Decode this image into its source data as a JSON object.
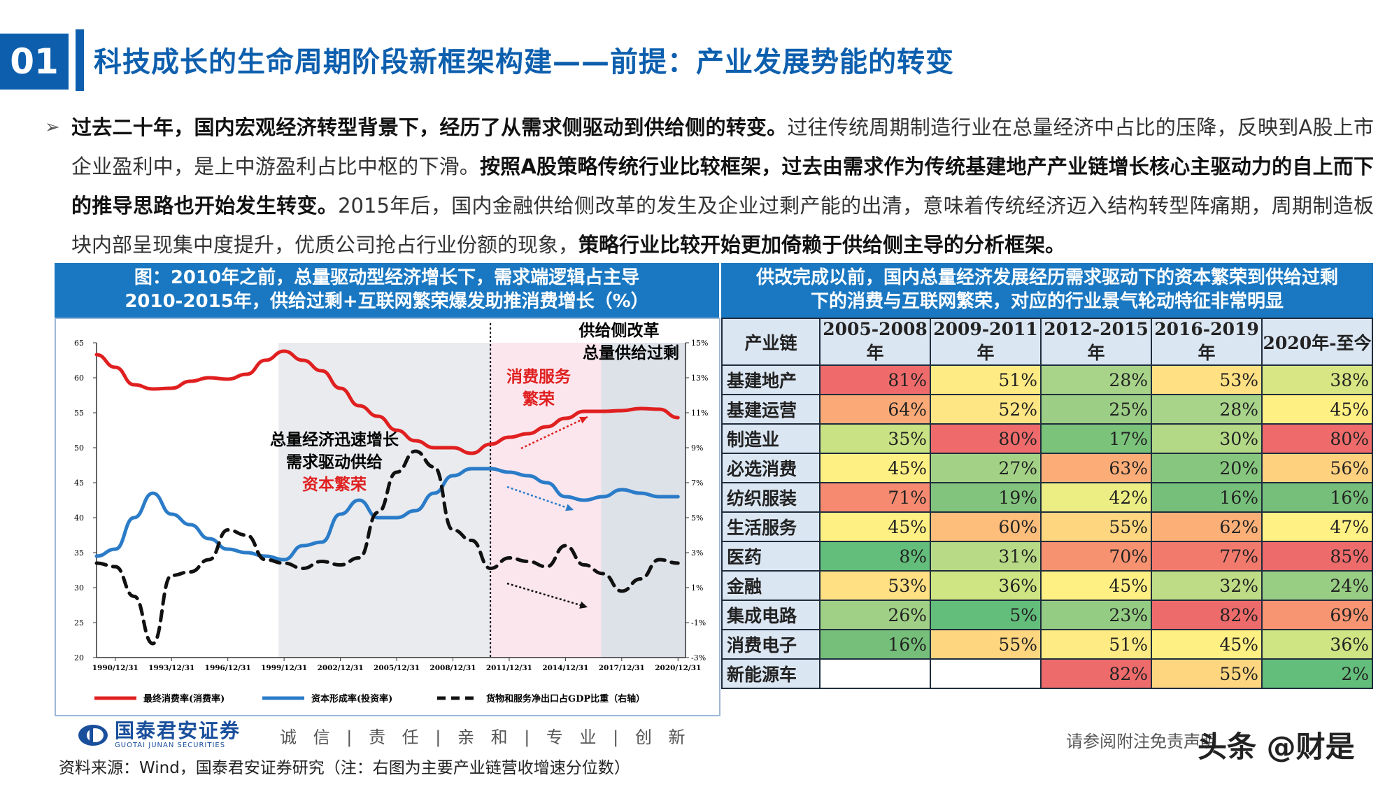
{
  "header": {
    "number": "01",
    "title": "科技成长的生命周期阶段新框架构建——前提：产业发展势能的转变"
  },
  "body": {
    "bullet": "➢",
    "b1": "过去二十年，国内宏观经济转型背景下，经历了从需求侧驱动到供给侧的转变。",
    "t1": "过往传统周期制造行业在总量经济中占比的压降，反映到A股上市企业盈利中，是上中游盈利占比中枢的下滑。",
    "b2": "按照A股策略传统行业比较框架，过去由需求作为传统基建地产产业链增长核心主驱动力的自上而下的推导思路也开始发生转变。",
    "t2": "2015年后，国内金融供给侧改革的发生及企业过剩产能的出清，意味着传统经济迈入结构转型阵痛期，周期制造板块内部呈现集中度提升，优质公司抢占行业份额的现象，",
    "b3": "策略行业比较开始更加倚赖于供给侧主导的分析框架。"
  },
  "left_panel": {
    "title_line1": "图：2010年之前，总量驱动型经济增长下，需求端逻辑占主导",
    "title_line2": "2010-2015年，供给过剩+互联网繁荣爆发助推消费增长（%）"
  },
  "right_panel": {
    "title_line1": "供改完成以前，国内总量经济发展经历需求驱动下的资本繁荣到供给过剩",
    "title_line2": "下的消费与互联网繁荣，对应的行业景气轮动特征非常明显"
  },
  "chart_data": {
    "type": "line",
    "x_ticks": [
      "1990/12/31",
      "1993/12/31",
      "1996/12/31",
      "1999/12/31",
      "2002/12/31",
      "2005/12/31",
      "2008/12/31",
      "2011/12/31",
      "2014/12/31",
      "2017/12/31",
      "2020/12/31"
    ],
    "x": [
      1990,
      1991,
      1992,
      1993,
      1994,
      1995,
      1996,
      1997,
      1998,
      1999,
      2000,
      2001,
      2002,
      2003,
      2004,
      2005,
      2006,
      2007,
      2008,
      2009,
      2010,
      2011,
      2012,
      2013,
      2014,
      2015,
      2016,
      2017,
      2018,
      2019,
      2020,
      2021
    ],
    "y_left_ticks": [
      "65",
      "60",
      "55",
      "50",
      "45",
      "40",
      "35",
      "30",
      "25",
      "20"
    ],
    "y_left_range": [
      20,
      65
    ],
    "y_right_ticks": [
      "15%",
      "13%",
      "11%",
      "9%",
      "7%",
      "5%",
      "3%",
      "1%",
      "-1%",
      "-3%"
    ],
    "y_right_range": [
      -3,
      15
    ],
    "series": [
      {
        "name": "最终消费率(消费率)",
        "axis": "left",
        "color": "#e02020",
        "dash": "solid",
        "values": [
          63.3,
          61.5,
          59.0,
          58.4,
          58.5,
          59.5,
          60.0,
          59.8,
          60.5,
          62.5,
          63.8,
          62.5,
          61.0,
          58.5,
          56.0,
          54.5,
          52.5,
          51.0,
          50.0,
          50.0,
          49.2,
          50.5,
          51.5,
          52.0,
          53.0,
          54.2,
          55.2,
          55.2,
          55.3,
          55.6,
          55.5,
          54.3
        ]
      },
      {
        "name": "资本形成率(投资率)",
        "axis": "left",
        "color": "#2b7cc8",
        "dash": "solid",
        "values": [
          34.5,
          35.5,
          40.0,
          43.5,
          40.5,
          39.0,
          37.0,
          35.5,
          35.0,
          34.5,
          34.0,
          36.0,
          36.5,
          40.5,
          42.5,
          40.0,
          40.0,
          41.0,
          43.5,
          46.0,
          47.0,
          47.0,
          46.5,
          46.0,
          45.0,
          43.0,
          42.5,
          43.0,
          44.0,
          43.5,
          43.0,
          43.0
        ]
      },
      {
        "name": "货物和服务净出口占GDP比重（右轴）",
        "axis": "right",
        "color": "#111111",
        "dash": "dashed",
        "values": [
          2.4,
          2.2,
          0.5,
          -2.2,
          1.7,
          1.9,
          2.6,
          4.3,
          4.0,
          2.6,
          2.4,
          2.1,
          2.5,
          2.3,
          2.7,
          5.3,
          7.6,
          8.8,
          7.9,
          4.3,
          3.7,
          2.1,
          2.7,
          2.5,
          2.2,
          3.4,
          2.3,
          1.8,
          0.8,
          1.5,
          2.6,
          2.4
        ]
      }
    ],
    "shaded_periods": [
      {
        "from": 1999.7,
        "to": 2011.0,
        "color": "#e9ebee"
      },
      {
        "from": 2011.0,
        "to": 2016.9,
        "color": "#fbe6ee"
      },
      {
        "from": 2016.9,
        "to": 2021.4,
        "color": "#dde1e8"
      }
    ],
    "divider_x": 2011.0,
    "annotations": {
      "supply_reform_1": "供给侧改革",
      "supply_reform_2": "总量供给过剩",
      "consumption_1": "消费服务",
      "consumption_2": "繁荣",
      "macro_1": "总量经济迅速增长",
      "macro_2": "需求驱动供给",
      "macro_3": "资本繁荣"
    },
    "legend_position": "bottom"
  },
  "table": {
    "headers": [
      "产业链",
      "2005-2008年",
      "2009-2011年",
      "2012-2015年",
      "2016-2019年",
      "2020年-至今"
    ],
    "rows": [
      {
        "name": "基建地产",
        "cells": [
          {
            "v": "81%",
            "c": "#ef6b6b"
          },
          {
            "v": "51%",
            "c": "#ffeb84"
          },
          {
            "v": "28%",
            "c": "#a8d48a"
          },
          {
            "v": "53%",
            "c": "#ffe083"
          },
          {
            "v": "38%",
            "c": "#d8e783"
          }
        ]
      },
      {
        "name": "基建运营",
        "cells": [
          {
            "v": "64%",
            "c": "#fbaa77"
          },
          {
            "v": "52%",
            "c": "#ffe684"
          },
          {
            "v": "25%",
            "c": "#9ccf85"
          },
          {
            "v": "28%",
            "c": "#a8d48a"
          },
          {
            "v": "45%",
            "c": "#fff084"
          }
        ]
      },
      {
        "name": "制造业",
        "cells": [
          {
            "v": "35%",
            "c": "#c9e283"
          },
          {
            "v": "80%",
            "c": "#ef6b6b"
          },
          {
            "v": "17%",
            "c": "#7bc27b"
          },
          {
            "v": "30%",
            "c": "#b3d886"
          },
          {
            "v": "80%",
            "c": "#ef6b6b"
          }
        ]
      },
      {
        "name": "必选消费",
        "cells": [
          {
            "v": "45%",
            "c": "#fff084"
          },
          {
            "v": "27%",
            "c": "#a3d287"
          },
          {
            "v": "63%",
            "c": "#fcad77"
          },
          {
            "v": "20%",
            "c": "#86c67e"
          },
          {
            "v": "56%",
            "c": "#fed17f"
          }
        ]
      },
      {
        "name": "纺织服装",
        "cells": [
          {
            "v": "71%",
            "c": "#f68a70"
          },
          {
            "v": "19%",
            "c": "#82c47d"
          },
          {
            "v": "42%",
            "c": "#ecee84"
          },
          {
            "v": "16%",
            "c": "#76bf7a"
          },
          {
            "v": "16%",
            "c": "#76bf7a"
          }
        ]
      },
      {
        "name": "生活服务",
        "cells": [
          {
            "v": "45%",
            "c": "#fff084"
          },
          {
            "v": "60%",
            "c": "#fdbd7b"
          },
          {
            "v": "55%",
            "c": "#fed680"
          },
          {
            "v": "62%",
            "c": "#fcb078"
          },
          {
            "v": "47%",
            "c": "#fff184"
          }
        ]
      },
      {
        "name": "医药",
        "cells": [
          {
            "v": "8%",
            "c": "#63be7b"
          },
          {
            "v": "31%",
            "c": "#b8da86"
          },
          {
            "v": "70%",
            "c": "#f79270"
          },
          {
            "v": "77%",
            "c": "#f27a6d"
          },
          {
            "v": "85%",
            "c": "#ee6b6b"
          }
        ]
      },
      {
        "name": "金融",
        "cells": [
          {
            "v": "53%",
            "c": "#ffe083"
          },
          {
            "v": "36%",
            "c": "#cfe483"
          },
          {
            "v": "45%",
            "c": "#fff084"
          },
          {
            "v": "32%",
            "c": "#bedc85"
          },
          {
            "v": "24%",
            "c": "#98cd84"
          }
        ]
      },
      {
        "name": "集成电路",
        "cells": [
          {
            "v": "26%",
            "c": "#a0d086"
          },
          {
            "v": "5%",
            "c": "#63be7b"
          },
          {
            "v": "23%",
            "c": "#94cc83"
          },
          {
            "v": "82%",
            "c": "#ee6b6b"
          },
          {
            "v": "69%",
            "c": "#f79472"
          }
        ]
      },
      {
        "name": "消费电子",
        "cells": [
          {
            "v": "16%",
            "c": "#76bf7a"
          },
          {
            "v": "55%",
            "c": "#fed680"
          },
          {
            "v": "51%",
            "c": "#ffeb84"
          },
          {
            "v": "45%",
            "c": "#fff084"
          },
          {
            "v": "36%",
            "c": "#cfe483"
          }
        ]
      },
      {
        "name": "新能源车",
        "cells": [
          {
            "v": "",
            "c": "#ffffff"
          },
          {
            "v": "",
            "c": "#ffffff"
          },
          {
            "v": "82%",
            "c": "#ee6b6b"
          },
          {
            "v": "55%",
            "c": "#fed680"
          },
          {
            "v": "2%",
            "c": "#63be7b"
          }
        ]
      }
    ]
  },
  "footer": {
    "logo_cn": "国泰君安证券",
    "logo_en": "GUOTAI JUNAN SECURITIES",
    "slogan": "诚 信 | 责 任 | 亲 和 | 专 业 | 创 新",
    "source": "资料来源：Wind，国泰君安证券研究（注：右图为主要产业链营收增速分位数）",
    "disclaimer": "请参阅附注免责声明",
    "watermark": "头条 @财是"
  }
}
